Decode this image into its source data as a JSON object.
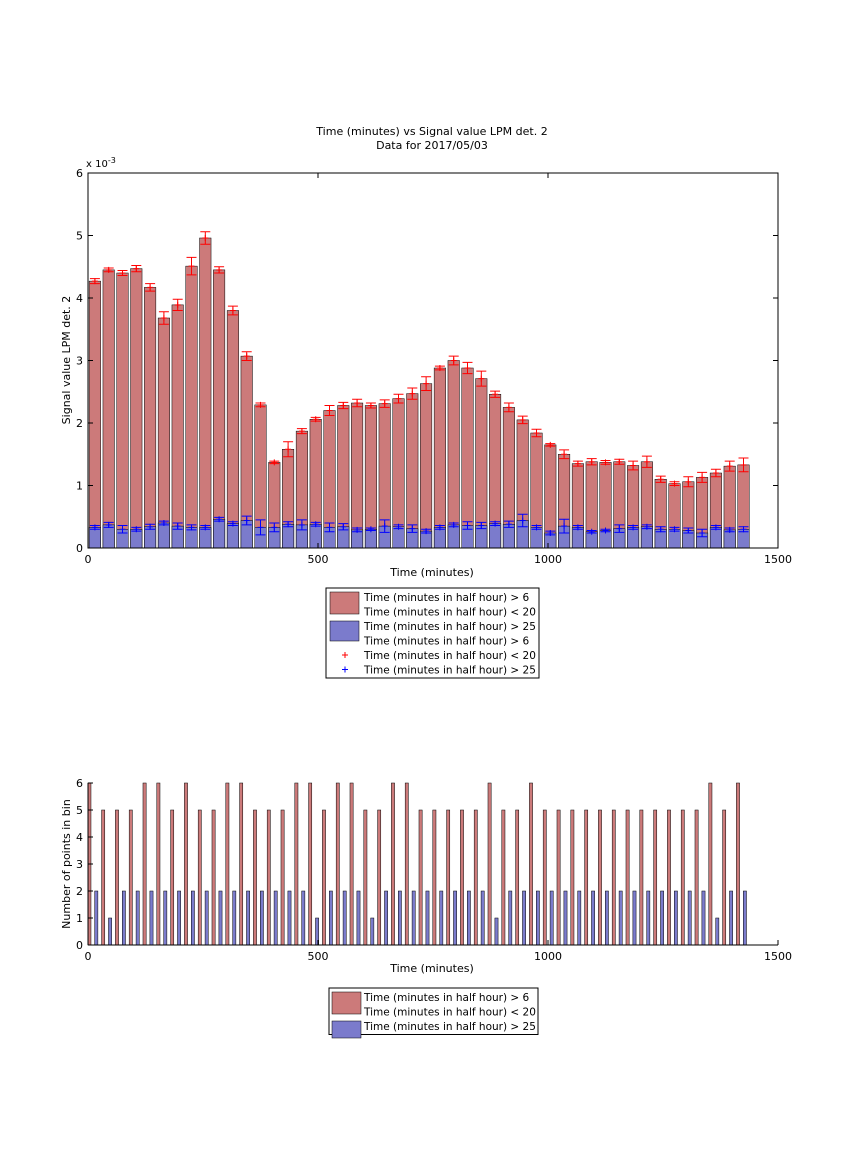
{
  "chart_data": [
    {
      "type": "bar",
      "title": "Time (minutes) vs Signal value LPM det. 2",
      "subtitle": "Data for 2017/05/03",
      "xlabel": "Time (minutes)",
      "ylabel": "Signal value LPM det. 2",
      "y_exponent_label": "x 10^-3",
      "y_exponent_base": "x 10",
      "y_exponent_power": "-3",
      "xlim": [
        0,
        1500
      ],
      "ylim": [
        0,
        6
      ],
      "x_ticks": [
        "0",
        "500",
        "1000",
        "1500"
      ],
      "y_ticks": [
        "0",
        "1",
        "2",
        "3",
        "4",
        "5",
        "6"
      ],
      "y_unit_scale": 0.001,
      "grid": false,
      "legend_position": "below",
      "legend": [
        {
          "text": "Time (minutes in half hour) > 6",
          "kind": "bar",
          "color": "#cc7a7a"
        },
        {
          "text": "Time (minutes in half hour) < 20",
          "kind": "none"
        },
        {
          "text": "Time (minutes in half hour) > 25",
          "kind": "bar",
          "color": "#7b7bcc"
        },
        {
          "text": "Time (minutes in half hour) > 6",
          "kind": "none"
        },
        {
          "text": "Time (minutes in half hour) < 20",
          "kind": "marker",
          "color": "#ff0000"
        },
        {
          "text": "Time (minutes in half hour) > 25",
          "kind": "marker",
          "color": "#0000ff"
        }
      ],
      "x": [
        15,
        45,
        75,
        105,
        135,
        165,
        195,
        225,
        255,
        285,
        315,
        345,
        375,
        405,
        435,
        465,
        495,
        525,
        555,
        585,
        615,
        645,
        675,
        705,
        735,
        765,
        795,
        825,
        855,
        885,
        915,
        945,
        975,
        1005,
        1035,
        1065,
        1095,
        1125,
        1155,
        1185,
        1215,
        1245,
        1275,
        1305,
        1335,
        1365,
        1395,
        1425
      ],
      "series": [
        {
          "name": "Time (minutes in half hour) > 6",
          "color": "#cc7a7a",
          "values": [
            4.27,
            4.45,
            4.4,
            4.47,
            4.17,
            3.68,
            3.89,
            4.51,
            4.96,
            4.45,
            3.8,
            3.07,
            2.29,
            1.37,
            1.58,
            1.87,
            2.06,
            2.2,
            2.28,
            2.32,
            2.28,
            2.31,
            2.39,
            2.47,
            2.63,
            2.88,
            3.0,
            2.88,
            2.71,
            2.46,
            2.25,
            2.05,
            1.84,
            1.65,
            1.5,
            1.35,
            1.38,
            1.37,
            1.38,
            1.32,
            1.38,
            1.1,
            1.03,
            1.06,
            1.13,
            1.2,
            1.31,
            1.33
          ],
          "errors": [
            0.04,
            0.03,
            0.04,
            0.05,
            0.06,
            0.1,
            0.09,
            0.14,
            0.1,
            0.05,
            0.07,
            0.07,
            0.03,
            0.02,
            0.12,
            0.04,
            0.03,
            0.08,
            0.05,
            0.06,
            0.04,
            0.06,
            0.07,
            0.09,
            0.11,
            0.03,
            0.07,
            0.09,
            0.12,
            0.05,
            0.07,
            0.06,
            0.06,
            0.02,
            0.07,
            0.04,
            0.05,
            0.03,
            0.04,
            0.07,
            0.09,
            0.05,
            0.03,
            0.08,
            0.08,
            0.06,
            0.08,
            0.11
          ]
        },
        {
          "name": "Time (minutes in half hour) > 25",
          "color": "#7b7bcc",
          "values": [
            0.33,
            0.37,
            0.3,
            0.3,
            0.34,
            0.4,
            0.35,
            0.33,
            0.33,
            0.46,
            0.39,
            0.44,
            0.33,
            0.33,
            0.38,
            0.37,
            0.38,
            0.33,
            0.34,
            0.29,
            0.3,
            0.35,
            0.34,
            0.31,
            0.27,
            0.33,
            0.37,
            0.36,
            0.36,
            0.39,
            0.38,
            0.44,
            0.33,
            0.24,
            0.35,
            0.33,
            0.26,
            0.28,
            0.31,
            0.33,
            0.34,
            0.3,
            0.3,
            0.28,
            0.24,
            0.33,
            0.29,
            0.3
          ],
          "errors": [
            0.03,
            0.04,
            0.06,
            0.03,
            0.04,
            0.03,
            0.05,
            0.04,
            0.03,
            0.03,
            0.03,
            0.07,
            0.12,
            0.07,
            0.04,
            0.08,
            0.03,
            0.07,
            0.05,
            0.03,
            0.02,
            0.1,
            0.03,
            0.06,
            0.03,
            0.03,
            0.03,
            0.06,
            0.05,
            0.03,
            0.05,
            0.1,
            0.03,
            0.03,
            0.11,
            0.03,
            0.02,
            0.02,
            0.06,
            0.03,
            0.03,
            0.04,
            0.03,
            0.04,
            0.06,
            0.03,
            0.03,
            0.04
          ]
        }
      ]
    },
    {
      "type": "bar",
      "title": "",
      "xlabel": "Time (minutes)",
      "ylabel": "Number of points in bin",
      "xlim": [
        0,
        1500
      ],
      "ylim": [
        0,
        6
      ],
      "x_ticks": [
        "0",
        "500",
        "1000",
        "1500"
      ],
      "y_ticks": [
        "0",
        "1",
        "2",
        "3",
        "4",
        "5",
        "6"
      ],
      "grid": false,
      "legend_position": "below",
      "legend": [
        {
          "text": "Time (minutes in half hour) > 6",
          "kind": "bar",
          "color": "#cc7a7a"
        },
        {
          "text": "Time (minutes in half hour) < 20",
          "kind": "none"
        },
        {
          "text": "Time (minutes in half hour) > 25",
          "kind": "bar",
          "color": "#7b7bcc"
        }
      ],
      "x": [
        3,
        33,
        63,
        93,
        123,
        153,
        183,
        213,
        243,
        273,
        303,
        333,
        363,
        393,
        423,
        453,
        483,
        513,
        543,
        573,
        603,
        633,
        663,
        693,
        723,
        753,
        783,
        813,
        843,
        873,
        903,
        933,
        963,
        993,
        1023,
        1053,
        1083,
        1113,
        1143,
        1173,
        1203,
        1233,
        1263,
        1293,
        1323,
        1353,
        1383,
        1413
      ],
      "series": [
        {
          "name": "Time (minutes in half hour) > 6",
          "color": "#cc7a7a",
          "values": [
            6,
            5,
            5,
            5,
            6,
            6,
            5,
            6,
            5,
            5,
            6,
            6,
            5,
            5,
            5,
            6,
            6,
            5,
            6,
            6,
            5,
            5,
            6,
            6,
            5,
            5,
            5,
            5,
            5,
            6,
            5,
            5,
            6,
            5,
            5,
            5,
            5,
            5,
            5,
            5,
            5,
            5,
            5,
            5,
            5,
            6,
            5,
            6
          ]
        },
        {
          "name": "Time (minutes in half hour) > 25",
          "color": "#7b7bcc",
          "values": [
            2,
            1,
            2,
            2,
            2,
            2,
            2,
            2,
            2,
            2,
            2,
            2,
            2,
            2,
            2,
            2,
            1,
            2,
            2,
            2,
            1,
            2,
            2,
            2,
            2,
            2,
            2,
            2,
            2,
            1,
            2,
            2,
            2,
            2,
            2,
            2,
            2,
            2,
            2,
            2,
            2,
            2,
            2,
            2,
            2,
            1,
            2,
            2
          ]
        }
      ]
    }
  ]
}
